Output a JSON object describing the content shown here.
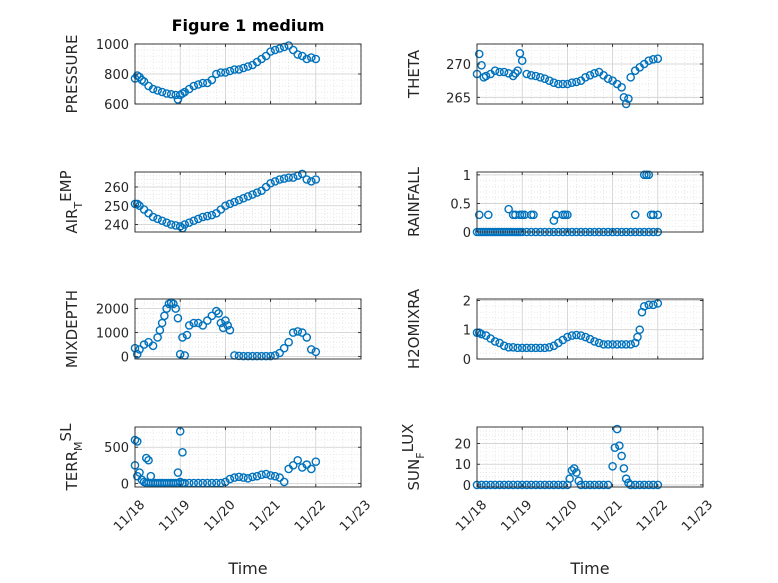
{
  "figure": {
    "title": "Figure 1 medium",
    "marker_color": "#0072BD",
    "axis_color": "#262626",
    "grid_color": "#dfdfdf"
  },
  "chart_data": [
    {
      "type": "scatter",
      "ylabel": "PRESSURE",
      "ylabel_sub": "",
      "xlabel": "",
      "ylim": [
        600,
        1000
      ],
      "yticks": [
        600,
        800,
        1000
      ],
      "ytick_labels": [
        "600",
        "800",
        "1000"
      ],
      "xlim": [
        0,
        5
      ],
      "grid": true,
      "title": "Figure 1 medium",
      "x": [
        0.0,
        0.05,
        0.1,
        0.15,
        0.2,
        0.3,
        0.4,
        0.5,
        0.6,
        0.7,
        0.8,
        0.9,
        0.95,
        1.0,
        1.05,
        1.1,
        1.2,
        1.3,
        1.4,
        1.5,
        1.6,
        1.7,
        1.8,
        1.9,
        2.0,
        2.1,
        2.2,
        2.3,
        2.4,
        2.5,
        2.6,
        2.7,
        2.8,
        2.9,
        3.0,
        3.1,
        3.2,
        3.3,
        3.4,
        3.5,
        3.6,
        3.7,
        3.8,
        3.9,
        4.0
      ],
      "y": [
        770,
        790,
        780,
        760,
        750,
        720,
        700,
        690,
        680,
        670,
        665,
        660,
        630,
        660,
        670,
        680,
        700,
        720,
        730,
        740,
        740,
        760,
        800,
        810,
        810,
        820,
        830,
        830,
        840,
        850,
        860,
        880,
        900,
        920,
        950,
        960,
        970,
        980,
        990,
        960,
        930,
        920,
        900,
        910,
        900
      ]
    },
    {
      "type": "scatter",
      "ylabel": "THETA",
      "ylabel_sub": "",
      "xlabel": "",
      "ylim": [
        264,
        273
      ],
      "yticks": [
        265,
        270
      ],
      "ytick_labels": [
        "265",
        "270"
      ],
      "xlim": [
        0,
        5
      ],
      "grid": true,
      "x": [
        0.0,
        0.05,
        0.1,
        0.15,
        0.2,
        0.3,
        0.4,
        0.5,
        0.6,
        0.7,
        0.8,
        0.85,
        0.9,
        0.95,
        1.0,
        1.1,
        1.2,
        1.3,
        1.4,
        1.5,
        1.6,
        1.7,
        1.8,
        1.9,
        2.0,
        2.1,
        2.2,
        2.3,
        2.4,
        2.5,
        2.6,
        2.7,
        2.8,
        2.9,
        3.0,
        3.1,
        3.2,
        3.25,
        3.3,
        3.35,
        3.4,
        3.5,
        3.6,
        3.7,
        3.8,
        3.9,
        4.0
      ],
      "y": [
        268.5,
        271.5,
        269.8,
        268,
        268.2,
        268.5,
        269,
        268.8,
        268.8,
        268.6,
        268.2,
        268.6,
        269,
        271.6,
        270.5,
        268.5,
        268.3,
        268.2,
        268,
        267.8,
        267.5,
        267.2,
        267,
        267,
        267,
        267.2,
        267.3,
        267.5,
        268,
        268.3,
        268.6,
        268.8,
        268.3,
        267.8,
        267.5,
        267,
        266.5,
        265,
        264,
        264.8,
        268,
        269,
        269.5,
        270,
        270.5,
        270.7,
        270.8
      ]
    },
    {
      "type": "scatter",
      "ylabel": "AIR",
      "ylabel_sub": "T",
      "ylabel_tail": "EMP",
      "xlabel": "",
      "ylim": [
        236,
        268
      ],
      "yticks": [
        240,
        250,
        260
      ],
      "ytick_labels": [
        "240",
        "250",
        "260"
      ],
      "xlim": [
        0,
        5
      ],
      "grid": true,
      "x": [
        0.0,
        0.05,
        0.1,
        0.2,
        0.3,
        0.4,
        0.5,
        0.6,
        0.7,
        0.8,
        0.9,
        1.0,
        1.05,
        1.1,
        1.2,
        1.3,
        1.4,
        1.5,
        1.6,
        1.7,
        1.8,
        1.9,
        2.0,
        2.1,
        2.2,
        2.3,
        2.4,
        2.5,
        2.6,
        2.7,
        2.8,
        2.9,
        3.0,
        3.1,
        3.2,
        3.3,
        3.4,
        3.5,
        3.6,
        3.7,
        3.8,
        3.9,
        4.0
      ],
      "y": [
        251,
        251,
        250,
        248,
        246,
        244,
        243,
        242,
        241,
        240,
        239.5,
        239,
        238,
        240,
        241,
        242,
        243,
        244,
        244.5,
        245,
        246,
        248,
        250,
        251,
        252,
        253,
        254,
        255,
        256,
        257,
        258,
        260,
        262,
        263,
        264,
        264.5,
        265,
        265,
        266,
        267,
        264,
        263,
        264
      ]
    },
    {
      "type": "scatter",
      "ylabel": "RAINFALL",
      "ylabel_sub": "",
      "xlabel": "",
      "ylim": [
        0,
        1.05
      ],
      "yticks": [
        0,
        0.5,
        1
      ],
      "ytick_labels": [
        "0",
        "0.5",
        "1"
      ],
      "xlim": [
        0,
        5
      ],
      "grid": true,
      "x": [
        0.0,
        0.05,
        0.1,
        0.15,
        0.2,
        0.25,
        0.3,
        0.35,
        0.4,
        0.45,
        0.5,
        0.55,
        0.6,
        0.65,
        0.7,
        0.75,
        0.8,
        0.85,
        0.9,
        0.95,
        1.0,
        1.1,
        1.2,
        1.3,
        1.4,
        1.5,
        1.6,
        1.7,
        1.8,
        1.9,
        2.0,
        2.1,
        2.2,
        2.3,
        2.4,
        2.5,
        2.6,
        2.7,
        2.8,
        2.9,
        3.0,
        3.1,
        3.2,
        3.3,
        3.4,
        3.5,
        3.6,
        3.7,
        3.8,
        3.9,
        4.0,
        0.05,
        0.25,
        0.7,
        0.8,
        0.85,
        0.95,
        1.0,
        1.05,
        1.2,
        1.25,
        1.7,
        1.75,
        1.9,
        1.95,
        2.0,
        3.5,
        3.7,
        3.75,
        3.8,
        3.85,
        3.9,
        4.0
      ],
      "y": [
        0,
        0,
        0,
        0,
        0,
        0,
        0,
        0,
        0,
        0,
        0,
        0,
        0,
        0,
        0,
        0,
        0,
        0,
        0,
        0,
        0,
        0,
        0,
        0,
        0,
        0,
        0,
        0,
        0,
        0,
        0,
        0,
        0,
        0,
        0,
        0,
        0,
        0,
        0,
        0,
        0,
        0,
        0,
        0,
        0,
        0,
        0,
        0,
        0,
        0,
        0,
        0.3,
        0.3,
        0.4,
        0.3,
        0.3,
        0.3,
        0.3,
        0.3,
        0.3,
        0.3,
        0.2,
        0.3,
        0.3,
        0.3,
        0.3,
        0.3,
        1,
        1,
        1,
        0.3,
        0.3,
        0.3
      ]
    },
    {
      "type": "scatter",
      "ylabel": "MIXDEPTH",
      "ylabel_sub": "",
      "xlabel": "",
      "ylim": [
        -100,
        2400
      ],
      "yticks": [
        0,
        1000,
        2000
      ],
      "ytick_labels": [
        "0",
        "1000",
        "2000"
      ],
      "xlim": [
        0,
        5
      ],
      "grid": true,
      "x": [
        0.0,
        0.05,
        0.1,
        0.2,
        0.3,
        0.4,
        0.5,
        0.55,
        0.6,
        0.65,
        0.7,
        0.75,
        0.8,
        0.85,
        0.9,
        0.95,
        1.0,
        1.05,
        1.1,
        1.15,
        1.2,
        1.3,
        1.4,
        1.5,
        1.6,
        1.7,
        1.8,
        1.85,
        1.9,
        1.95,
        2.0,
        2.05,
        2.1,
        2.2,
        2.3,
        2.4,
        2.5,
        2.6,
        2.7,
        2.8,
        2.9,
        3.0,
        3.1,
        3.2,
        3.3,
        3.4,
        3.5,
        3.6,
        3.7,
        3.8,
        3.9,
        4.0
      ],
      "y": [
        350,
        100,
        300,
        500,
        600,
        450,
        800,
        1100,
        1400,
        1700,
        2000,
        2200,
        2250,
        2200,
        2000,
        1600,
        100,
        800,
        50,
        900,
        1300,
        1400,
        1400,
        1300,
        1500,
        1700,
        1900,
        1800,
        1400,
        1200,
        1500,
        1300,
        1100,
        50,
        30,
        20,
        20,
        20,
        20,
        20,
        20,
        20,
        50,
        150,
        350,
        600,
        1000,
        1050,
        1000,
        800,
        300,
        200
      ]
    },
    {
      "type": "scatter",
      "ylabel": "H2OMIXRA",
      "ylabel_sub": "",
      "xlabel": "",
      "ylim": [
        0,
        2.05
      ],
      "yticks": [
        0,
        1,
        2
      ],
      "ytick_labels": [
        "0",
        "1",
        "2"
      ],
      "xlim": [
        0,
        5
      ],
      "grid": true,
      "x": [
        0.0,
        0.05,
        0.1,
        0.2,
        0.3,
        0.4,
        0.5,
        0.6,
        0.7,
        0.8,
        0.9,
        1.0,
        1.1,
        1.2,
        1.3,
        1.4,
        1.5,
        1.6,
        1.7,
        1.8,
        1.9,
        2.0,
        2.1,
        2.2,
        2.3,
        2.4,
        2.5,
        2.6,
        2.7,
        2.8,
        2.9,
        3.0,
        3.1,
        3.2,
        3.3,
        3.4,
        3.5,
        3.55,
        3.6,
        3.65,
        3.7,
        3.8,
        3.9,
        4.0
      ],
      "y": [
        0.9,
        0.9,
        0.85,
        0.8,
        0.7,
        0.6,
        0.55,
        0.45,
        0.4,
        0.4,
        0.38,
        0.38,
        0.38,
        0.38,
        0.38,
        0.38,
        0.38,
        0.4,
        0.45,
        0.55,
        0.65,
        0.75,
        0.8,
        0.82,
        0.8,
        0.75,
        0.68,
        0.6,
        0.55,
        0.5,
        0.5,
        0.5,
        0.5,
        0.5,
        0.5,
        0.5,
        0.55,
        0.75,
        1.0,
        1.6,
        1.8,
        1.85,
        1.85,
        1.9
      ]
    },
    {
      "type": "scatter",
      "ylabel": "TERR",
      "ylabel_sub": "M",
      "ylabel_tail": "SL",
      "xlabel": "Time",
      "ylim": [
        -50,
        780
      ],
      "yticks": [
        0,
        500
      ],
      "ytick_labels": [
        "0",
        "500"
      ],
      "xlim": [
        0,
        5
      ],
      "grid": true,
      "xticks": [
        0,
        1,
        2,
        3,
        4,
        5
      ],
      "xtick_labels": [
        "11/18",
        "11/19",
        "11/20",
        "11/21",
        "11/22",
        "11/23"
      ],
      "x": [
        0.0,
        0.05,
        0.1,
        0.15,
        0.2,
        0.25,
        0.3,
        0.35,
        0.4,
        0.45,
        0.5,
        0.55,
        0.6,
        0.65,
        0.7,
        0.75,
        0.8,
        0.85,
        0.9,
        0.95,
        1.0,
        1.05,
        1.1,
        1.2,
        1.3,
        1.4,
        1.5,
        1.6,
        1.7,
        1.8,
        1.9,
        2.0,
        2.1,
        2.2,
        2.3,
        2.4,
        2.5,
        2.6,
        2.7,
        2.8,
        2.9,
        3.0,
        3.1,
        3.2,
        3.3,
        3.4,
        3.5,
        3.6,
        3.7,
        3.8,
        3.9,
        4.0,
        0.0,
        0.05,
        0.25,
        0.3,
        0.35,
        0.95,
        1.0,
        1.05
      ],
      "y": [
        250,
        580,
        150,
        50,
        20,
        10,
        5,
        5,
        5,
        5,
        5,
        5,
        5,
        5,
        5,
        5,
        5,
        5,
        5,
        5,
        20,
        5,
        5,
        5,
        5,
        5,
        5,
        5,
        5,
        5,
        5,
        20,
        60,
        80,
        90,
        80,
        70,
        90,
        100,
        120,
        130,
        110,
        100,
        80,
        20,
        200,
        250,
        320,
        220,
        260,
        200,
        300,
        600,
        100,
        350,
        320,
        100,
        150,
        720,
        430
      ]
    },
    {
      "type": "scatter",
      "ylabel": "SUN",
      "ylabel_sub": "F",
      "ylabel_tail": "LUX",
      "xlabel": "Time",
      "ylim": [
        -1,
        28
      ],
      "yticks": [
        0,
        10,
        20
      ],
      "ytick_labels": [
        "0",
        "10",
        "20"
      ],
      "xlim": [
        0,
        5
      ],
      "grid": true,
      "xticks": [
        0,
        1,
        2,
        3,
        4,
        5
      ],
      "xtick_labels": [
        "11/18",
        "11/19",
        "11/20",
        "11/21",
        "11/22",
        "11/23"
      ],
      "x": [
        0.0,
        0.1,
        0.2,
        0.3,
        0.4,
        0.5,
        0.6,
        0.7,
        0.8,
        0.9,
        1.0,
        1.1,
        1.2,
        1.3,
        1.4,
        1.5,
        1.6,
        1.7,
        1.8,
        1.9,
        2.0,
        2.05,
        2.1,
        2.15,
        2.2,
        2.25,
        2.3,
        2.4,
        2.5,
        2.6,
        2.7,
        2.8,
        2.9,
        3.0,
        3.05,
        3.1,
        3.15,
        3.2,
        3.25,
        3.3,
        3.35,
        3.4,
        3.5,
        3.6,
        3.7,
        3.8,
        3.9,
        4.0
      ],
      "y": [
        0,
        0,
        0,
        0,
        0,
        0,
        0,
        0,
        0,
        0,
        0,
        0,
        0,
        0,
        0,
        0,
        0,
        0,
        0,
        0,
        0,
        3,
        7,
        8,
        6,
        2,
        0,
        0,
        0,
        0,
        0,
        0,
        0,
        9,
        18,
        27,
        19,
        14,
        8,
        3,
        1,
        0,
        0,
        0,
        0,
        0,
        0,
        0
      ]
    }
  ]
}
